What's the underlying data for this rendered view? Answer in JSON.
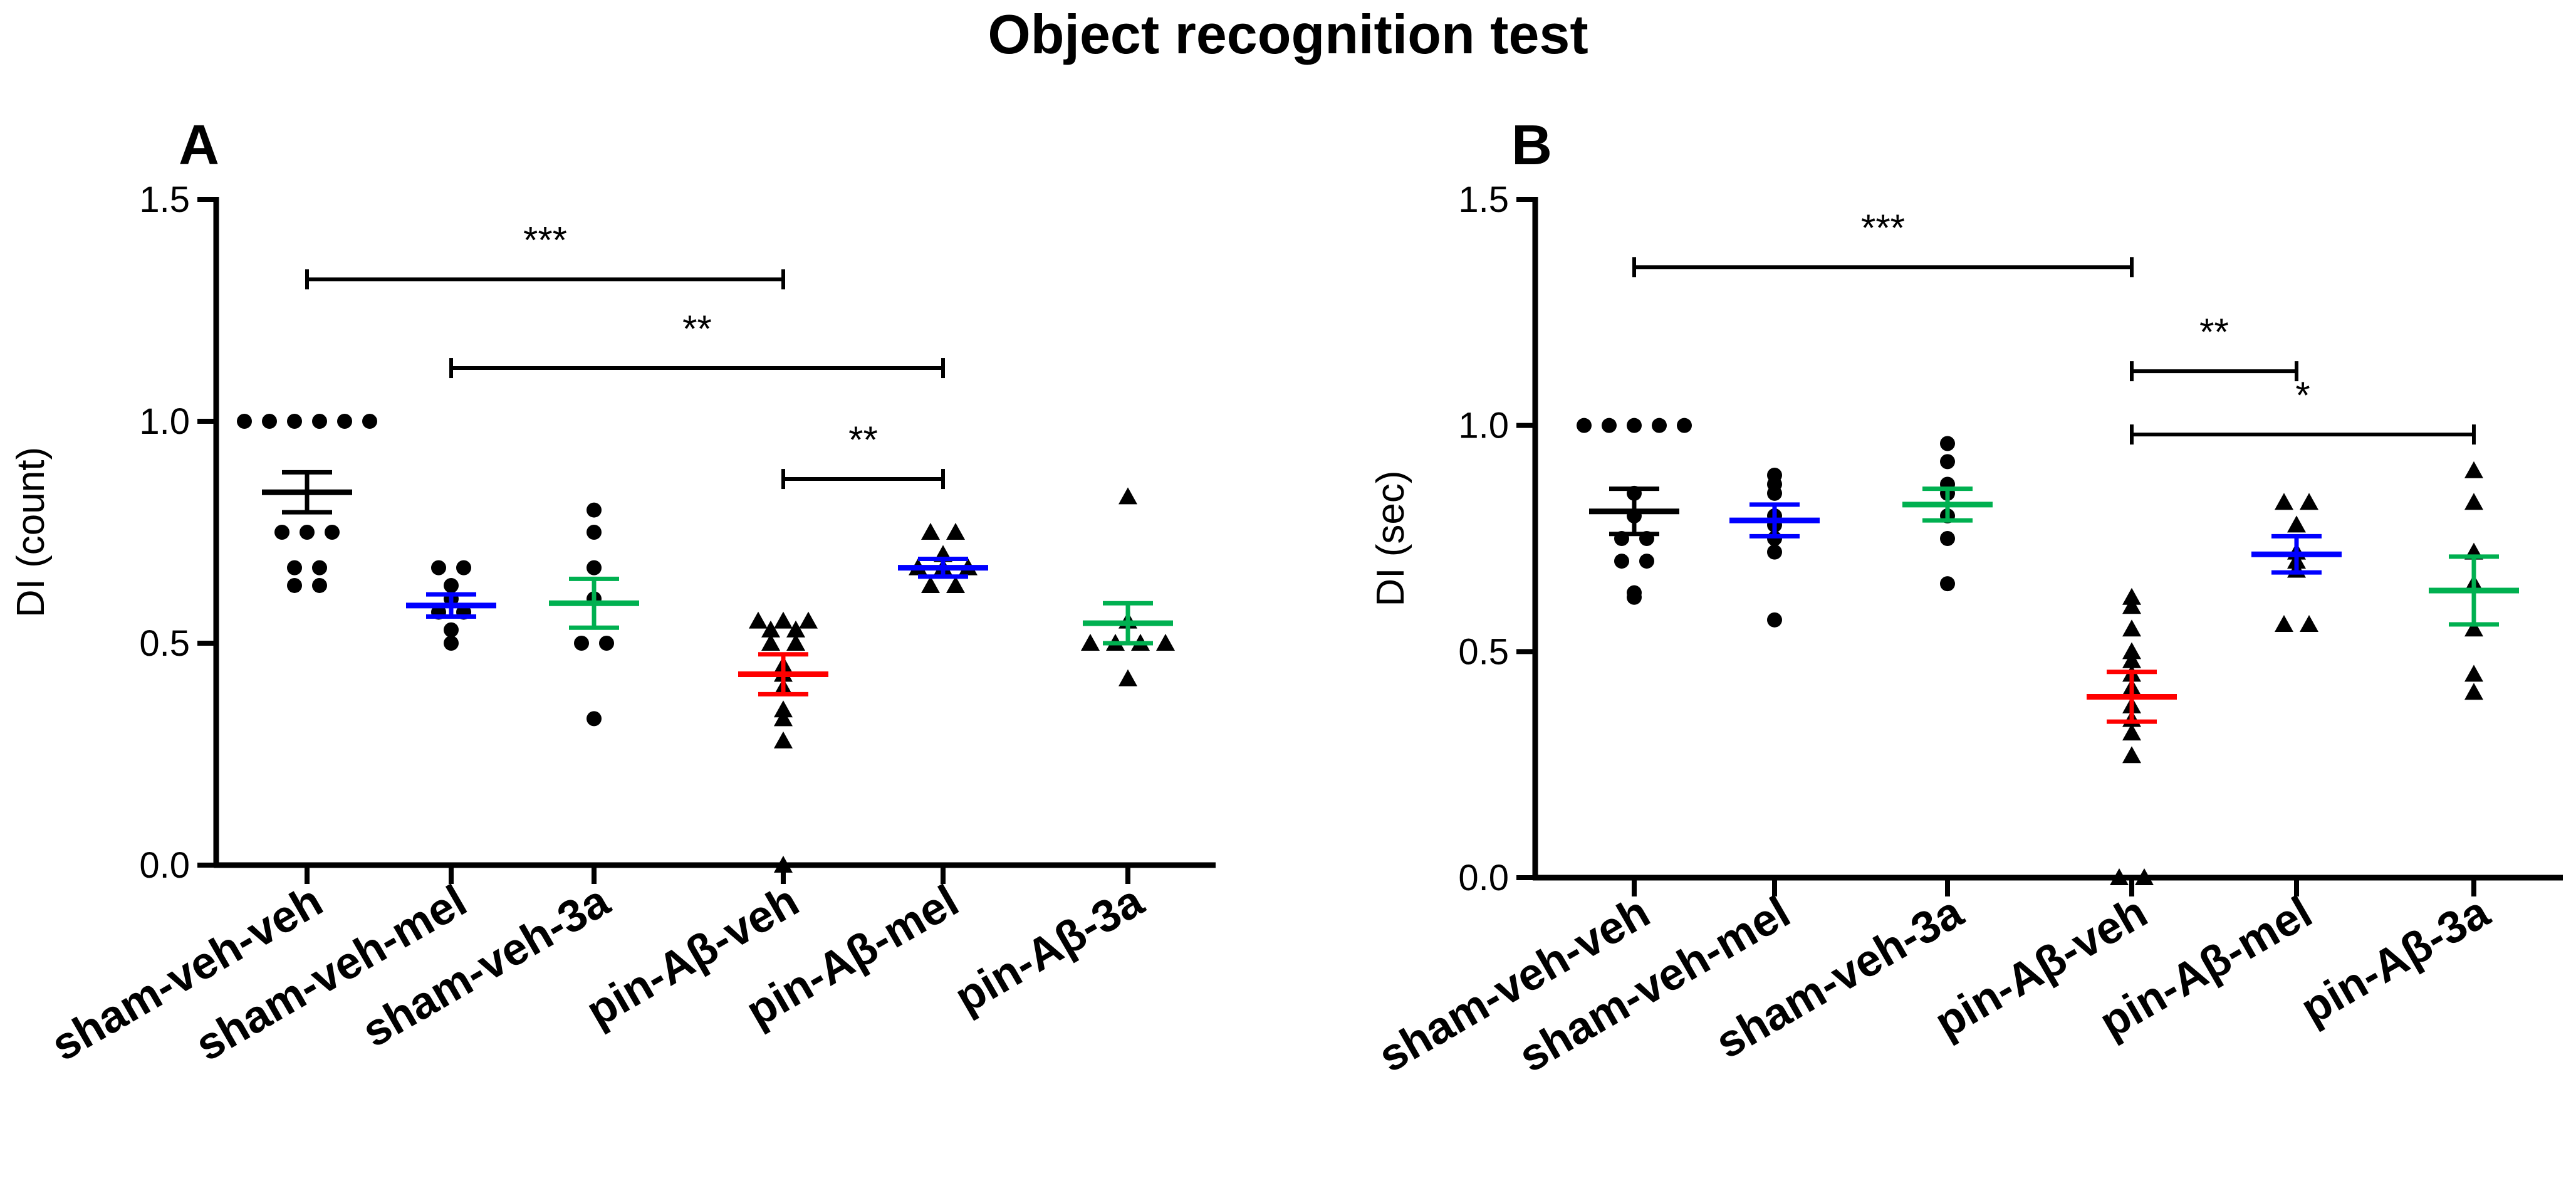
{
  "title": "Object recognition test",
  "chart_data": [
    {
      "type": "scatter",
      "panel": "A",
      "ylabel": "DI (count)",
      "ylim": [
        0,
        1.5
      ],
      "yticks": [
        "0.0",
        "0.5",
        "1.0",
        "1.5"
      ],
      "categories": [
        "sham-veh-veh",
        "sham-veh-mel",
        "sham-veh-3a",
        "pin-Aβ-veh",
        "pin-Aβ-mel",
        "pin-Aβ-3a"
      ],
      "groups": [
        {
          "name": "sham-veh-veh",
          "marker": "circle",
          "mean": 0.84,
          "sem": 0.045,
          "color": "#000000",
          "points": [
            1.0,
            1.0,
            1.0,
            1.0,
            1.0,
            1.0,
            0.75,
            0.75,
            0.75,
            0.67,
            0.67,
            0.63,
            0.63
          ]
        },
        {
          "name": "sham-veh-mel",
          "marker": "circle",
          "mean": 0.585,
          "sem": 0.025,
          "color": "#0000ff",
          "points": [
            0.67,
            0.67,
            0.63,
            0.6,
            0.57,
            0.57,
            0.53,
            0.5
          ]
        },
        {
          "name": "sham-veh-3a",
          "marker": "circle",
          "mean": 0.59,
          "sem": 0.055,
          "color": "#00b050",
          "points": [
            0.8,
            0.75,
            0.67,
            0.6,
            0.5,
            0.5,
            0.33
          ]
        },
        {
          "name": "pin-Aβ-veh",
          "marker": "triangle",
          "mean": 0.43,
          "sem": 0.045,
          "color": "#ff0000",
          "points": [
            0.55,
            0.55,
            0.55,
            0.53,
            0.53,
            0.5,
            0.5,
            0.45,
            0.43,
            0.4,
            0.35,
            0.33,
            0.28,
            0.0
          ]
        },
        {
          "name": "pin-Aβ-mel",
          "marker": "triangle",
          "mean": 0.67,
          "sem": 0.02,
          "color": "#0000ff",
          "points": [
            0.75,
            0.75,
            0.7,
            0.67,
            0.67,
            0.67,
            0.63,
            0.63
          ]
        },
        {
          "name": "pin-Aβ-3a",
          "marker": "triangle",
          "mean": 0.545,
          "sem": 0.045,
          "color": "#00b050",
          "points": [
            0.83,
            0.55,
            0.5,
            0.5,
            0.5,
            0.5,
            0.42
          ]
        }
      ],
      "significance": [
        {
          "from": 0,
          "to": 3,
          "y": 1.32,
          "label": "***"
        },
        {
          "from": 1,
          "to": 4,
          "y": 1.12,
          "label": "**"
        },
        {
          "from": 3,
          "to": 4,
          "y": 0.87,
          "label": "**"
        }
      ]
    },
    {
      "type": "scatter",
      "panel": "B",
      "ylabel": "DI (sec)",
      "ylim": [
        0,
        1.5
      ],
      "yticks": [
        "0.0",
        "0.5",
        "1.0",
        "1.5"
      ],
      "categories": [
        "sham-veh-veh",
        "sham-veh-mel",
        "sham-veh-3a",
        "pin-Aβ-veh",
        "pin-Aβ-mel",
        "pin-Aβ-3a"
      ],
      "groups": [
        {
          "name": "sham-veh-veh",
          "marker": "circle",
          "mean": 0.81,
          "sem": 0.05,
          "color": "#000000",
          "points": [
            1.0,
            1.0,
            1.0,
            1.0,
            1.0,
            0.85,
            0.8,
            0.75,
            0.75,
            0.7,
            0.7,
            0.63,
            0.62
          ]
        },
        {
          "name": "sham-veh-mel",
          "marker": "circle",
          "mean": 0.79,
          "sem": 0.035,
          "color": "#0000ff",
          "points": [
            0.89,
            0.87,
            0.85,
            0.8,
            0.78,
            0.75,
            0.72,
            0.57
          ]
        },
        {
          "name": "sham-veh-3a",
          "marker": "circle",
          "mean": 0.825,
          "sem": 0.035,
          "color": "#00b050",
          "points": [
            0.96,
            0.92,
            0.87,
            0.85,
            0.8,
            0.75,
            0.65
          ]
        },
        {
          "name": "pin-Aβ-veh",
          "marker": "triangle",
          "mean": 0.4,
          "sem": 0.055,
          "color": "#ff0000",
          "points": [
            0.62,
            0.6,
            0.55,
            0.5,
            0.48,
            0.45,
            0.42,
            0.38,
            0.35,
            0.32,
            0.27,
            0.0,
            0.0
          ]
        },
        {
          "name": "pin-Aβ-mel",
          "marker": "triangle",
          "mean": 0.715,
          "sem": 0.04,
          "color": "#0000ff",
          "points": [
            0.83,
            0.83,
            0.78,
            0.72,
            0.7,
            0.68,
            0.56,
            0.56
          ]
        },
        {
          "name": "pin-Aβ-3a",
          "marker": "triangle",
          "mean": 0.635,
          "sem": 0.075,
          "color": "#00b050",
          "points": [
            0.9,
            0.83,
            0.72,
            0.65,
            0.55,
            0.45,
            0.41
          ]
        }
      ],
      "significance": [
        {
          "from": 0,
          "to": 3,
          "y": 1.35,
          "label": "***"
        },
        {
          "from": 3,
          "to": 4,
          "y": 1.12,
          "label": "**"
        },
        {
          "from": 3,
          "to": 5,
          "y": 0.98,
          "label": "*"
        }
      ]
    }
  ]
}
